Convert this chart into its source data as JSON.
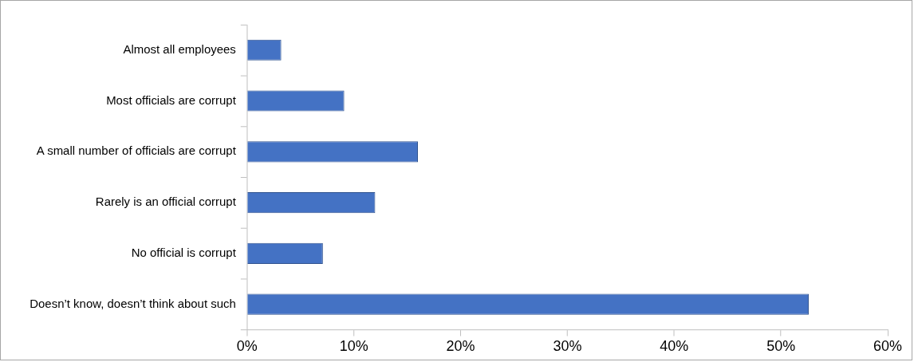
{
  "chart_data": {
    "type": "bar",
    "orientation": "horizontal",
    "categories": [
      "Almost all employees",
      "Most officials are corrupt",
      "A small number of officials are corrupt",
      "Rarely is an official corrupt",
      "No official is corrupt",
      "Doesn’t know, doesn’t think about such"
    ],
    "values": [
      3.2,
      9.1,
      16,
      12,
      7.1,
      52.6
    ],
    "color": "#4472c4",
    "xlim": [
      0,
      60
    ],
    "xticks": [
      {
        "value": 0,
        "label": "0%"
      },
      {
        "value": 10,
        "label": "10%"
      },
      {
        "value": 20,
        "label": "20%"
      },
      {
        "value": 30,
        "label": "30%"
      },
      {
        "value": 40,
        "label": "40%"
      },
      {
        "value": 50,
        "label": "50%"
      },
      {
        "value": 60,
        "label": "60%"
      }
    ],
    "grid": false,
    "legend": false
  }
}
